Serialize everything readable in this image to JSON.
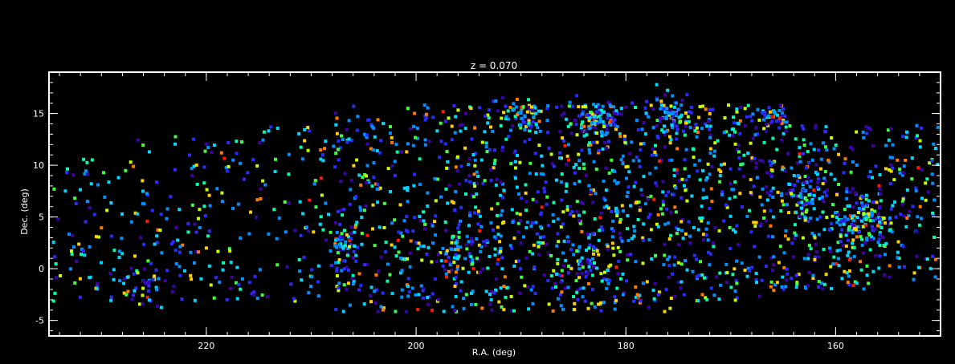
{
  "chart_data": {
    "type": "scatter",
    "title": "z = 0.070",
    "xlabel": "R.A. (deg)",
    "ylabel": "Dec. (deg)",
    "xlim": [
      235,
      150
    ],
    "ylim": [
      -6.5,
      19
    ],
    "x_ticks": [
      220,
      200,
      180,
      160
    ],
    "y_ticks": [
      -5,
      0,
      5,
      10,
      15
    ],
    "x_tick_labels": [
      "220",
      "200",
      "180",
      "160"
    ],
    "y_tick_labels": [
      "-5",
      "0",
      "5",
      "10",
      "15"
    ],
    "x_minor_step": 2,
    "y_minor_step": 1,
    "grid": false,
    "background": "#000000",
    "axis_color": "#ffffff",
    "marker": "square",
    "marker_colors": [
      "#3f00a8",
      "#2a2cff",
      "#0090ff",
      "#00d8ff",
      "#00ffb0",
      "#40ff40",
      "#c8ff00",
      "#ffd000",
      "#ff7a00",
      "#ff1a00"
    ],
    "color_weights": [
      2,
      3,
      3,
      2,
      1,
      1,
      1,
      1,
      0.5,
      0.2
    ],
    "point_count_target": 2600,
    "density_regions": [
      {
        "ra": [
          227,
          237
        ],
        "dec": [
          -3,
          11
        ],
        "density": 0.5
      },
      {
        "ra": [
          215,
          227
        ],
        "dec": [
          -3,
          13
        ],
        "density": 0.55
      },
      {
        "ra": [
          208,
          215
        ],
        "dec": [
          -3,
          14
        ],
        "density": 0.45
      },
      {
        "ra": [
          195,
          208
        ],
        "dec": [
          -4,
          16
        ],
        "density": 1.0
      },
      {
        "ra": [
          185,
          195
        ],
        "dec": [
          -4,
          16.5
        ],
        "density": 1.2
      },
      {
        "ra": [
          175,
          185
        ],
        "dec": [
          -4,
          16.5
        ],
        "density": 1.25
      },
      {
        "ra": [
          165,
          175
        ],
        "dec": [
          -3,
          16
        ],
        "density": 1.15
      },
      {
        "ra": [
          157,
          165
        ],
        "dec": [
          -2,
          14
        ],
        "density": 1.2
      },
      {
        "ra": [
          150,
          157
        ],
        "dec": [
          -1,
          14
        ],
        "density": 1.0
      }
    ],
    "clusters": [
      {
        "ra": 183,
        "dec": 14.5,
        "spread": 1.2,
        "n": 90
      },
      {
        "ra": 176,
        "dec": 15.0,
        "spread": 1.3,
        "n": 70
      },
      {
        "ra": 190,
        "dec": 15.0,
        "spread": 1.0,
        "n": 50
      },
      {
        "ra": 158,
        "dec": 4.8,
        "spread": 1.6,
        "n": 110
      },
      {
        "ra": 163,
        "dec": 7.5,
        "spread": 1.2,
        "n": 60
      },
      {
        "ra": 166,
        "dec": 14.8,
        "spread": 0.8,
        "n": 40
      },
      {
        "ra": 196,
        "dec": 1.5,
        "spread": 1.2,
        "n": 50
      },
      {
        "ra": 184,
        "dec": 0.5,
        "spread": 1.1,
        "n": 40
      },
      {
        "ra": 226,
        "dec": -1.5,
        "spread": 1.4,
        "n": 40
      },
      {
        "ra": 207,
        "dec": 2.5,
        "spread": 1.0,
        "n": 35
      }
    ]
  }
}
